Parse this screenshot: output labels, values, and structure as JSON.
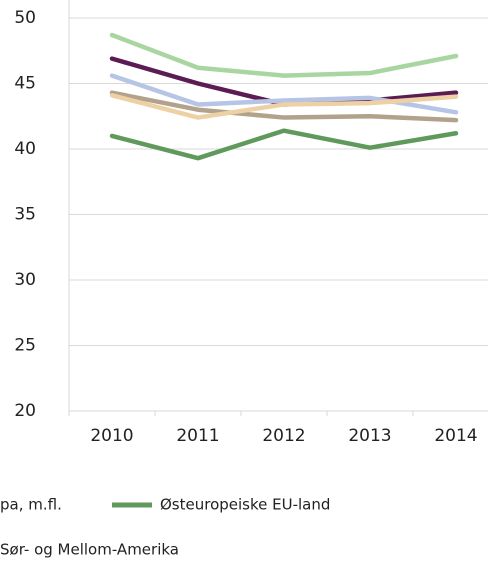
{
  "chart_data": {
    "type": "line",
    "categories": [
      "2010",
      "2011",
      "2012",
      "2013",
      "2014"
    ],
    "series": [
      {
        "color": "#a9d5a1",
        "values": [
          48.7,
          46.2,
          45.6,
          45.8,
          47.1
        ]
      },
      {
        "color": "#5b1b53",
        "values": [
          46.9,
          45.0,
          43.4,
          43.7,
          44.3
        ]
      },
      {
        "name": "pa, m.fl.",
        "color": "#b6c5e5",
        "values": [
          45.6,
          43.4,
          43.7,
          43.9,
          42.8
        ]
      },
      {
        "name": "Østeuropeiske EU-land",
        "color": "#5f9a5c",
        "values": [
          41.0,
          39.3,
          41.4,
          40.1,
          41.2
        ]
      },
      {
        "name": "Sør- og Mellom-Amerika",
        "color": "#b2a28c",
        "values": [
          44.3,
          43.0,
          42.4,
          42.5,
          42.2
        ]
      },
      {
        "color": "#edd1a5",
        "values": [
          44.1,
          42.4,
          43.4,
          43.5,
          44.0
        ]
      }
    ],
    "ylim": [
      20,
      50
    ],
    "yticks": [
      20,
      25,
      30,
      35,
      40,
      45,
      50
    ],
    "grid": true
  }
}
